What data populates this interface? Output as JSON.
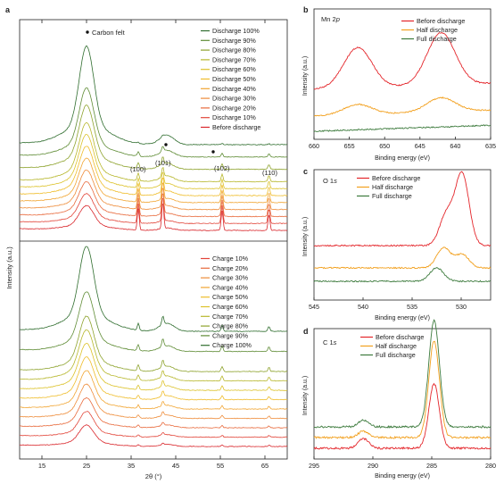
{
  "colors": {
    "xrd_lines": [
      "#d9262b",
      "#e2463a",
      "#e86a3c",
      "#ee8c3a",
      "#f1a532",
      "#efbd2b",
      "#dcc22a",
      "#b7b72c",
      "#8ea32e",
      "#5f8c35",
      "#2f6d2e"
    ]
  },
  "chart_data": [
    {
      "panel": "a",
      "type": "line",
      "subtype": "stacked-spectra",
      "xlabel": "2θ (°)",
      "ylabel": "Intensity (a.u.)",
      "xlim": [
        10,
        70
      ],
      "xticks": [
        15,
        25,
        35,
        45,
        55,
        65
      ],
      "annotations": {
        "carbon_felt_label": "Carbon felt",
        "carbon_felt_peaks_2theta": [
          25.0,
          43.0,
          53.5
        ],
        "miller_labels": [
          {
            "text": "(100)",
            "x": 36.6
          },
          {
            "text": "(101)",
            "x": 42.1
          },
          {
            "text": "(102)",
            "x": 55.4
          },
          {
            "text": "(110)",
            "x": 65.9
          }
        ]
      },
      "discharge_legend": [
        "Discharge 100%",
        "Discharge 90%",
        "Discharge 80%",
        "Discharge 70%",
        "Discharge 60%",
        "Discharge 50%",
        "Discharge 40%",
        "Discharge 30%",
        "Discharge 20%",
        "Discharge 10%",
        "Before discharge"
      ],
      "charge_legend": [
        "Charge 10%",
        "Charge 20%",
        "Charge 30%",
        "Charge 40%",
        "Charge 50%",
        "Charge 60%",
        "Charge 70%",
        "Charge 80%",
        "Charge 90%",
        "Charge 100%"
      ],
      "peak_positions_2theta": [
        25.0,
        36.6,
        42.1,
        43.0,
        55.4,
        65.9
      ]
    },
    {
      "panel": "b",
      "type": "line",
      "title": "Mn 2p",
      "xlabel": "Binding energy (eV)",
      "ylabel": "Intensity (a.u.)",
      "xlim": [
        660,
        635
      ],
      "xticks": [
        660,
        655,
        650,
        645,
        640,
        635
      ],
      "series": [
        {
          "name": "Before discharge",
          "color": "#e4262b",
          "peaks": [
            {
              "x": 653.8,
              "y": 1.0
            },
            {
              "x": 642.0,
              "y": 1.3
            }
          ]
        },
        {
          "name": "Half discharge",
          "color": "#f2a01e",
          "peaks": [
            {
              "x": 653.8,
              "y": 0.25
            },
            {
              "x": 642.0,
              "y": 0.35
            }
          ]
        },
        {
          "name": "Full discharge",
          "color": "#3c7a3c",
          "peaks": []
        }
      ]
    },
    {
      "panel": "c",
      "type": "line",
      "title": "O 1s",
      "xlabel": "Binding energy (eV)",
      "ylabel": "Intensity (a.u.)",
      "xlim": [
        545,
        527
      ],
      "xticks": [
        545,
        540,
        535,
        530
      ],
      "series": [
        {
          "name": "Before discharge",
          "color": "#e4262b",
          "peaks": [
            {
              "x": 529.9,
              "y": 1.6
            },
            {
              "x": 531.5,
              "y": 0.7
            }
          ]
        },
        {
          "name": "Half discharge",
          "color": "#f2a01e",
          "peaks": [
            {
              "x": 529.9,
              "y": 0.3
            },
            {
              "x": 531.8,
              "y": 0.45
            }
          ]
        },
        {
          "name": "Full discharge",
          "color": "#3c7a3c",
          "peaks": [
            {
              "x": 532.5,
              "y": 0.3
            }
          ]
        }
      ]
    },
    {
      "panel": "d",
      "type": "line",
      "title": "C 1s",
      "xlabel": "Binding energy (eV)",
      "ylabel": "Intensity (a.u.)",
      "xlim": [
        295,
        280
      ],
      "xticks": [
        295,
        290,
        285,
        280
      ],
      "series": [
        {
          "name": "Before discharge",
          "color": "#e4262b",
          "peaks": [
            {
              "x": 284.8,
              "y": 1.0
            },
            {
              "x": 290.8,
              "y": 0.15
            }
          ]
        },
        {
          "name": "Half discharge",
          "color": "#f2a01e",
          "peaks": [
            {
              "x": 284.8,
              "y": 1.5
            },
            {
              "x": 290.8,
              "y": 0.1
            }
          ]
        },
        {
          "name": "Full discharge",
          "color": "#3c7a3c",
          "peaks": [
            {
              "x": 284.8,
              "y": 1.65
            },
            {
              "x": 290.8,
              "y": 0.1
            }
          ]
        }
      ]
    }
  ],
  "panel_letters": {
    "a": "a",
    "b": "b",
    "c": "c",
    "d": "d"
  },
  "italic_symbols": {
    "mn_p": "p",
    "o_s": "s",
    "c_s": "s"
  }
}
